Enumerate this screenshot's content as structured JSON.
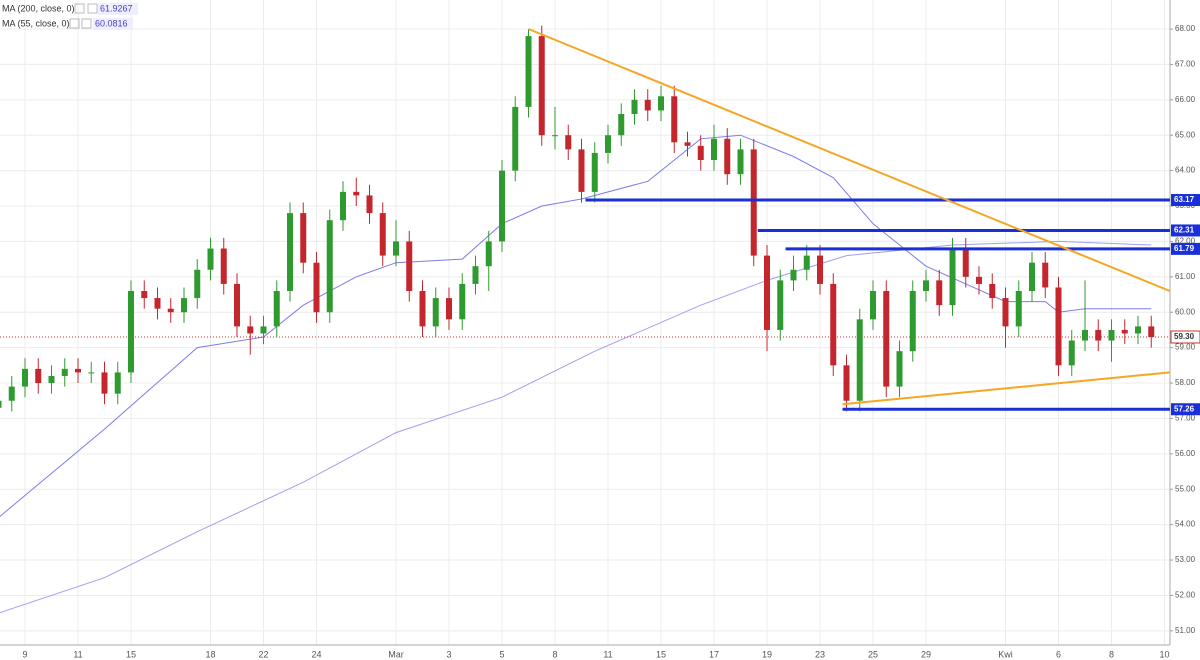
{
  "chart_data": {
    "type": "candlestick",
    "categories": [
      null,
      null,
      "9",
      null,
      null,
      null,
      "11",
      null,
      null,
      null,
      "15",
      null,
      null,
      null,
      null,
      null,
      "18",
      null,
      null,
      null,
      "22",
      null,
      null,
      null,
      "24",
      null,
      null,
      null,
      null,
      null,
      "Mar",
      null,
      null,
      null,
      "3",
      null,
      null,
      null,
      "5",
      null,
      null,
      null,
      "8",
      null,
      null,
      null,
      "11",
      null,
      null,
      null,
      "15",
      null,
      null,
      null,
      "17",
      null,
      null,
      null,
      "19",
      null,
      null,
      null,
      "23",
      null,
      null,
      null,
      "25",
      null,
      null,
      null,
      "29",
      null,
      null,
      null,
      null,
      null,
      "Kwi",
      null,
      null,
      null,
      "6",
      null,
      null,
      null,
      "8",
      null,
      null,
      null,
      "10"
    ],
    "open": [
      57.3,
      57.5,
      57.9,
      58.4,
      58.0,
      58.2,
      58.4,
      58.3,
      58.3,
      57.7,
      58.3,
      60.6,
      60.4,
      60.1,
      60.0,
      60.4,
      61.2,
      61.8,
      60.8,
      59.6,
      59.4,
      59.6,
      60.6,
      62.8,
      61.4,
      60.0,
      62.6,
      63.4,
      63.3,
      62.8,
      61.6,
      62.0,
      60.6,
      59.6,
      60.4,
      59.8,
      60.8,
      61.3,
      62.0,
      64.0,
      65.8,
      67.8,
      65.0,
      65.0,
      64.6,
      63.4,
      64.5,
      65.0,
      65.6,
      66.0,
      65.7,
      66.1,
      64.8,
      64.7,
      64.3,
      64.9,
      63.9,
      64.6,
      61.6,
      59.5,
      60.9,
      61.2,
      61.6,
      60.8,
      58.5,
      57.5,
      59.8,
      60.6,
      57.9,
      58.9,
      60.6,
      60.9,
      60.2,
      61.8,
      61.0,
      60.8,
      60.4,
      59.6,
      60.6,
      61.4,
      60.7,
      58.5,
      59.2,
      59.5,
      59.2,
      59.5,
      59.4,
      59.6,
      null
    ],
    "high": [
      57.8,
      58.2,
      58.7,
      58.7,
      58.5,
      58.7,
      58.7,
      58.6,
      58.6,
      58.6,
      60.9,
      60.9,
      60.7,
      60.4,
      60.7,
      61.5,
      62.1,
      62.1,
      61.1,
      59.9,
      59.9,
      60.9,
      63.1,
      63.1,
      61.7,
      62.9,
      63.7,
      63.8,
      63.6,
      63.1,
      62.6,
      62.3,
      60.9,
      60.7,
      60.7,
      61.1,
      61.6,
      62.3,
      64.3,
      66.1,
      68.0,
      68.1,
      65.8,
      65.3,
      64.9,
      64.8,
      65.3,
      65.9,
      66.3,
      66.3,
      66.4,
      66.4,
      65.1,
      65.0,
      65.3,
      65.2,
      64.9,
      64.9,
      61.9,
      61.2,
      61.6,
      61.9,
      61.9,
      61.1,
      58.8,
      60.1,
      60.9,
      60.9,
      59.2,
      60.9,
      61.2,
      61.2,
      62.1,
      62.1,
      61.3,
      61.1,
      60.7,
      60.9,
      61.7,
      61.7,
      61.0,
      59.5,
      60.9,
      59.8,
      59.8,
      59.8,
      59.9,
      59.9,
      null
    ],
    "low": [
      57.0,
      57.2,
      57.6,
      57.7,
      57.7,
      57.9,
      58.0,
      58.0,
      57.4,
      57.4,
      58.0,
      60.1,
      59.8,
      59.7,
      59.7,
      60.1,
      60.9,
      60.5,
      59.3,
      58.8,
      59.1,
      59.3,
      60.3,
      61.1,
      59.7,
      59.7,
      62.3,
      63.0,
      62.5,
      61.3,
      61.3,
      60.3,
      59.3,
      59.3,
      59.5,
      59.5,
      60.5,
      60.6,
      61.7,
      63.7,
      65.5,
      64.7,
      64.6,
      64.3,
      63.1,
      63.1,
      64.2,
      64.7,
      65.3,
      65.4,
      65.4,
      64.5,
      64.4,
      64.0,
      64.0,
      63.6,
      63.6,
      61.3,
      58.9,
      59.2,
      60.6,
      60.9,
      60.5,
      58.2,
      57.2,
      57.2,
      59.5,
      57.6,
      57.6,
      58.6,
      60.3,
      59.9,
      59.9,
      60.7,
      60.5,
      60.1,
      59.0,
      59.3,
      60.3,
      60.4,
      58.2,
      58.2,
      58.9,
      58.9,
      58.6,
      59.1,
      59.1,
      59.0,
      null
    ],
    "close": [
      57.5,
      57.9,
      58.4,
      58.0,
      58.2,
      58.4,
      58.3,
      58.3,
      57.7,
      58.3,
      60.6,
      60.4,
      60.1,
      60.0,
      60.4,
      61.2,
      61.8,
      60.8,
      59.6,
      59.4,
      59.6,
      60.6,
      62.8,
      61.4,
      60.0,
      62.6,
      63.4,
      63.3,
      62.8,
      61.6,
      62.0,
      60.6,
      59.6,
      60.4,
      59.8,
      60.8,
      61.3,
      62.0,
      64.0,
      65.8,
      67.8,
      65.0,
      65.0,
      64.6,
      63.4,
      64.5,
      65.0,
      65.6,
      66.0,
      65.7,
      66.1,
      64.8,
      64.7,
      64.3,
      64.9,
      63.9,
      64.6,
      61.6,
      59.5,
      60.9,
      61.2,
      61.6,
      60.8,
      58.5,
      57.5,
      59.8,
      60.6,
      57.9,
      58.9,
      60.6,
      60.9,
      60.2,
      61.8,
      61.0,
      60.8,
      60.4,
      59.6,
      60.6,
      61.4,
      60.7,
      58.5,
      59.2,
      59.5,
      59.2,
      59.5,
      59.4,
      59.6,
      59.3,
      null
    ],
    "colors": {
      "up": "#2f9a2f",
      "down": "#c4262e"
    },
    "ylim": [
      50.6,
      68.82
    ],
    "yticks": [
      {
        "value": 51,
        "label": "51.00"
      },
      {
        "value": 52,
        "label": "52.00"
      },
      {
        "value": 53,
        "label": "53.00"
      },
      {
        "value": 54,
        "label": "54.00"
      },
      {
        "value": 55,
        "label": "55.00"
      },
      {
        "value": 56,
        "label": "56.00"
      },
      {
        "value": 57,
        "label": "57.00"
      },
      {
        "value": 58,
        "label": "58.00"
      },
      {
        "value": 59,
        "label": "59.00"
      },
      {
        "value": 60,
        "label": "60.00"
      },
      {
        "value": 61,
        "label": "61.00"
      },
      {
        "value": 62,
        "label": "62.00"
      },
      {
        "value": 63,
        "label": "63.00"
      },
      {
        "value": 64,
        "label": "64.00"
      },
      {
        "value": 65,
        "label": "65.00"
      },
      {
        "value": 66,
        "label": "66.00"
      },
      {
        "value": 67,
        "label": "67.00"
      },
      {
        "value": 68,
        "label": "68.00"
      }
    ],
    "grid": true,
    "moving_averages": [
      {
        "name": "MA (200, close, 0)",
        "value": 61.9267,
        "color": "#9f9ff0",
        "x": [
          0,
          8,
          15,
          23,
          30,
          38,
          45,
          53,
          58,
          64,
          72,
          80,
          87
        ],
        "values": [
          51.5,
          52.5,
          53.8,
          55.2,
          56.6,
          57.6,
          58.9,
          60.2,
          60.9,
          61.6,
          61.9,
          62.0,
          61.9
        ]
      },
      {
        "name": "MA (55, close, 0)",
        "value": 60.0816,
        "color": "#7c7cec",
        "x": [
          0,
          8,
          15,
          20,
          23,
          27,
          30,
          35,
          38,
          41,
          44,
          49,
          53,
          56,
          60,
          63,
          66,
          70,
          73,
          76,
          79,
          80,
          82,
          87
        ],
        "values": [
          54.2,
          56.7,
          59.0,
          59.3,
          60.2,
          61.0,
          61.4,
          61.5,
          62.5,
          63.0,
          63.2,
          63.7,
          64.9,
          65.0,
          64.4,
          63.8,
          62.5,
          61.3,
          60.8,
          60.3,
          60.3,
          60.0,
          60.1,
          60.1
        ]
      }
    ],
    "levels": [
      {
        "value": 63.17,
        "x_start": 44.3,
        "color": "#1a2fd6"
      },
      {
        "value": 62.31,
        "x_start": 57.3,
        "color": "#1a2fd6"
      },
      {
        "value": 61.79,
        "x_start": 59.4,
        "color": "#1a2fd6"
      },
      {
        "value": 57.26,
        "x_start": 63.7,
        "color": "#1a2fd6"
      }
    ],
    "trendlines": [
      {
        "x": [
          40,
          88.4
        ],
        "values": [
          68.0,
          60.6
        ],
        "color": "#f5a623"
      },
      {
        "x": [
          63.7,
          88.4
        ],
        "values": [
          57.4,
          58.3
        ],
        "color": "#f5a623"
      }
    ],
    "last_price": {
      "value": 59.3,
      "label": "59.30",
      "color": "#d0312d"
    }
  }
}
